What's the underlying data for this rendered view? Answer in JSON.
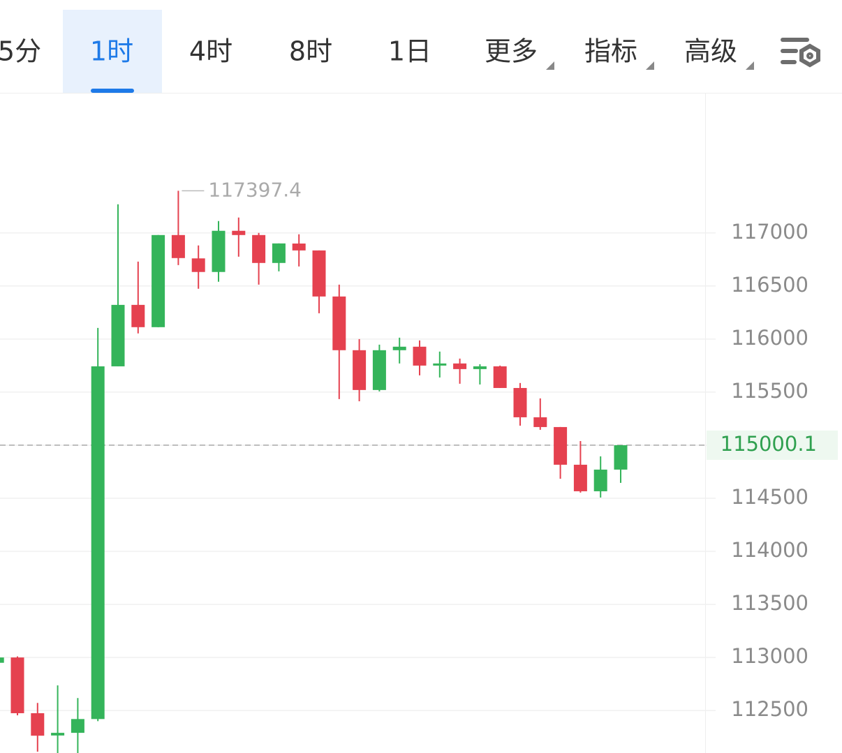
{
  "tabs": [
    "5分",
    "1时",
    "4时",
    "8时",
    "1日",
    "更多",
    "指标",
    "高级"
  ],
  "chart_data": {
    "type": "candlestick",
    "open": [
      112950,
      113000,
      112475,
      112265,
      112290,
      112420,
      115743,
      116322,
      116112,
      116980,
      116760,
      116632,
      117020,
      116980,
      116717,
      116900,
      116835,
      116401,
      115895,
      115520,
      115895,
      115928,
      115750,
      115770,
      115717,
      115743,
      115539,
      115263,
      115171,
      114816,
      114566,
      114770
    ],
    "high": [
      113000,
      113010,
      112572,
      112737,
      112618,
      116105,
      117270,
      116730,
      116980,
      117397.4,
      116882,
      117112,
      117145,
      117000,
      116901,
      116987,
      116835,
      116513,
      116000,
      115947,
      116013,
      115987,
      115882,
      115816,
      115763,
      115750,
      115586,
      115441,
      115171,
      115039,
      114895,
      115000.1
    ],
    "low": [
      112950,
      112455,
      112112,
      112100,
      112100,
      112400,
      115743,
      116053,
      116112,
      116697,
      116474,
      116540,
      116776,
      116513,
      116638,
      116684,
      116243,
      115434,
      115414,
      115507,
      115770,
      115658,
      115638,
      115579,
      115572,
      115539,
      115184,
      115145,
      114684,
      114553,
      114507,
      114645
    ],
    "close": [
      113000,
      112475,
      112263,
      112290,
      112420,
      115743,
      116322,
      116112,
      116980,
      116763,
      116632,
      117020,
      116980,
      116717,
      116901,
      116835,
      116401,
      115895,
      115520,
      115895,
      115928,
      115750,
      115770,
      115717,
      115743,
      115539,
      115263,
      115171,
      114816,
      114566,
      114770,
      115000.1
    ],
    "up_color": "#34b45a",
    "down_color": "#e5414f",
    "ylim": [
      112100,
      118320
    ],
    "yticks": [
      112500,
      113000,
      113500,
      114000,
      114500,
      115000,
      115500,
      116000,
      116500,
      117000
    ],
    "hidden_tick_labels": [
      115000
    ],
    "grid": true,
    "last_price": 115000.1,
    "max_high": 117397.4
  }
}
